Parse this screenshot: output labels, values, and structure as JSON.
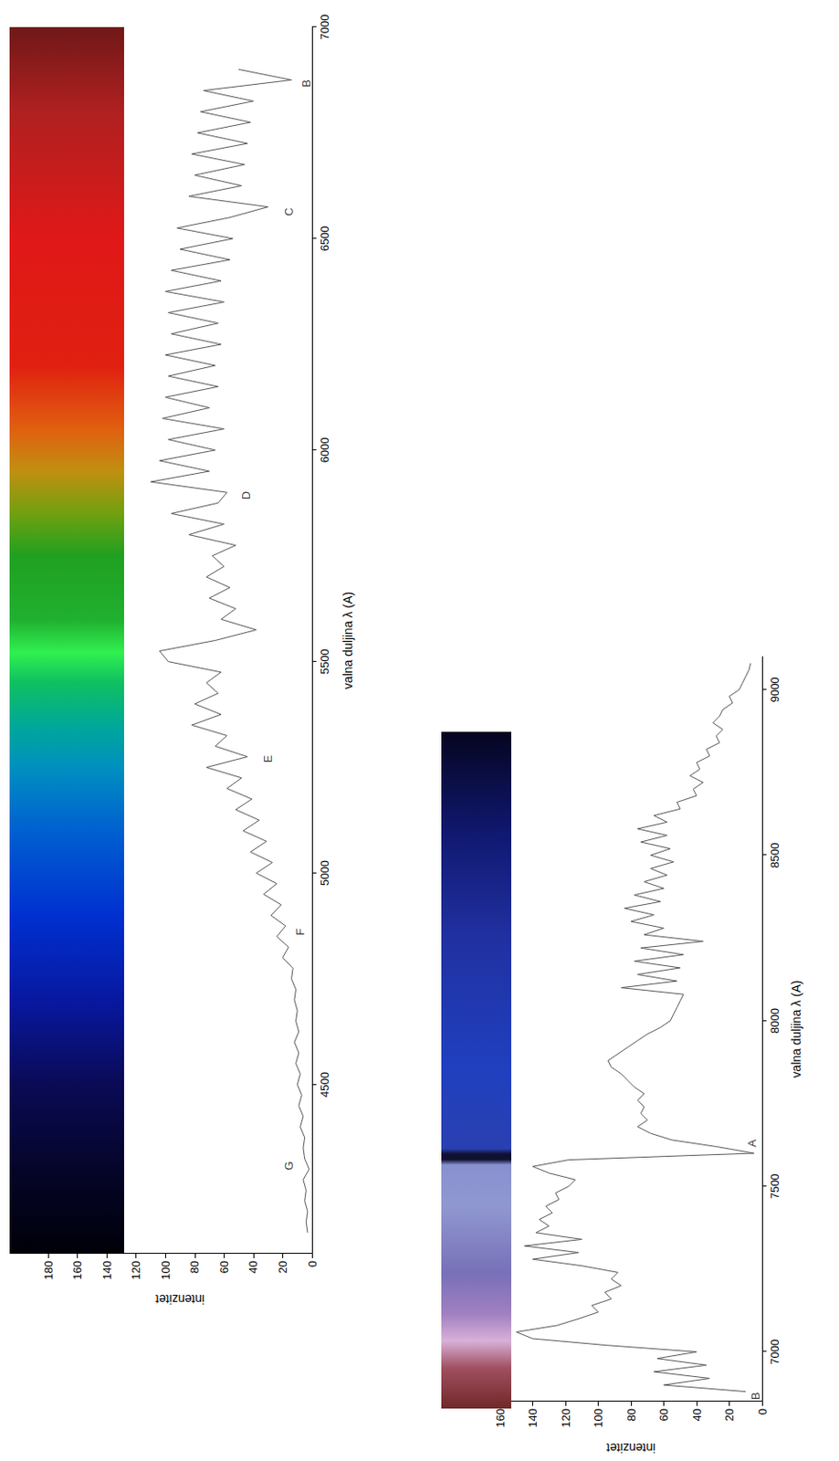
{
  "chart_data": [
    {
      "type": "line",
      "color": "#555555",
      "grid": false,
      "x_label": "valna duljina λ (A)",
      "y_label": "intenzitet",
      "xlim": [
        4100,
        7000
      ],
      "xticks": [
        4500,
        5000,
        5500,
        6000,
        6500,
        7000
      ],
      "ylim": [
        0,
        180
      ],
      "yticks": [
        0,
        20,
        40,
        60,
        80,
        100,
        120,
        140,
        160,
        180
      ],
      "x": [
        4150,
        4175,
        4200,
        4225,
        4250,
        4275,
        4300,
        4325,
        4350,
        4375,
        4400,
        4425,
        4450,
        4475,
        4500,
        4525,
        4550,
        4575,
        4600,
        4625,
        4650,
        4675,
        4700,
        4725,
        4750,
        4775,
        4800,
        4825,
        4850,
        4875,
        4900,
        4925,
        4950,
        4975,
        5000,
        5025,
        5050,
        5075,
        5100,
        5125,
        5150,
        5175,
        5200,
        5225,
        5250,
        5275,
        5300,
        5325,
        5350,
        5375,
        5400,
        5425,
        5450,
        5475,
        5500,
        5525,
        5550,
        5575,
        5600,
        5625,
        5650,
        5675,
        5700,
        5725,
        5750,
        5775,
        5800,
        5825,
        5850,
        5875,
        5900,
        5925,
        5950,
        5975,
        6000,
        6025,
        6050,
        6075,
        6100,
        6125,
        6150,
        6175,
        6200,
        6225,
        6250,
        6275,
        6300,
        6325,
        6350,
        6375,
        6400,
        6425,
        6450,
        6475,
        6500,
        6525,
        6550,
        6575,
        6600,
        6625,
        6650,
        6675,
        6700,
        6725,
        6750,
        6775,
        6800,
        6825,
        6850,
        6875,
        6900
      ],
      "values": [
        3,
        4,
        3,
        5,
        4,
        6,
        2,
        5,
        6,
        5,
        8,
        6,
        9,
        7,
        10,
        8,
        11,
        9,
        12,
        9,
        11,
        10,
        12,
        11,
        14,
        13,
        20,
        16,
        24,
        18,
        28,
        21,
        33,
        24,
        38,
        27,
        42,
        31,
        47,
        36,
        52,
        41,
        58,
        48,
        72,
        44,
        66,
        58,
        82,
        62,
        80,
        64,
        72,
        62,
        98,
        104,
        66,
        38,
        62,
        52,
        70,
        56,
        72,
        60,
        68,
        52,
        84,
        60,
        96,
        64,
        58,
        110,
        70,
        104,
        66,
        98,
        60,
        102,
        70,
        100,
        64,
        98,
        66,
        100,
        62,
        96,
        64,
        98,
        60,
        100,
        62,
        96,
        56,
        90,
        54,
        92,
        56,
        30,
        84,
        48,
        80,
        46,
        82,
        44,
        78,
        42,
        76,
        40,
        74,
        14,
        50
      ],
      "annotations": [
        {
          "text": "G",
          "x": 4308,
          "y": 16
        },
        {
          "text": "F",
          "x": 4861,
          "y": 8
        },
        {
          "text": "E",
          "x": 5270,
          "y": 30
        },
        {
          "text": "D",
          "x": 5893,
          "y": 45
        },
        {
          "text": "C",
          "x": 6563,
          "y": 16
        },
        {
          "text": "B",
          "x": 6867,
          "y": 4
        }
      ]
    },
    {
      "type": "line",
      "color": "#555555",
      "grid": false,
      "x_label": "valna duljina λ (A)",
      "y_label": "intenzitet",
      "xlim": [
        6850,
        9100
      ],
      "xticks": [
        7000,
        7500,
        8000,
        8500,
        9000
      ],
      "ylim": [
        0,
        160
      ],
      "yticks": [
        0,
        20,
        40,
        60,
        80,
        100,
        120,
        140,
        160
      ],
      "x": [
        6880,
        6900,
        6920,
        6940,
        6960,
        6980,
        7000,
        7020,
        7040,
        7060,
        7080,
        7100,
        7120,
        7140,
        7160,
        7180,
        7200,
        7220,
        7240,
        7260,
        7280,
        7300,
        7320,
        7340,
        7360,
        7380,
        7400,
        7420,
        7440,
        7460,
        7480,
        7500,
        7520,
        7540,
        7560,
        7580,
        7600,
        7620,
        7640,
        7660,
        7680,
        7700,
        7720,
        7740,
        7760,
        7780,
        7800,
        7820,
        7840,
        7860,
        7880,
        7900,
        7920,
        7940,
        7960,
        7980,
        8000,
        8020,
        8040,
        8060,
        8080,
        8100,
        8120,
        8140,
        8160,
        8180,
        8200,
        8220,
        8240,
        8260,
        8280,
        8300,
        8320,
        8340,
        8360,
        8380,
        8400,
        8420,
        8440,
        8460,
        8480,
        8500,
        8520,
        8540,
        8560,
        8580,
        8600,
        8620,
        8640,
        8660,
        8680,
        8700,
        8720,
        8740,
        8760,
        8780,
        8800,
        8820,
        8840,
        8860,
        8880,
        8900,
        8920,
        8940,
        8960,
        8980,
        9000,
        9020,
        9040,
        9060,
        9080
      ],
      "values": [
        10,
        60,
        32,
        66,
        34,
        64,
        40,
        95,
        140,
        150,
        125,
        112,
        100,
        104,
        92,
        96,
        86,
        92,
        88,
        110,
        140,
        112,
        145,
        110,
        138,
        130,
        136,
        128,
        132,
        124,
        126,
        118,
        114,
        130,
        140,
        118,
        5,
        28,
        55,
        68,
        76,
        70,
        74,
        72,
        76,
        72,
        78,
        82,
        86,
        92,
        94,
        88,
        82,
        76,
        70,
        62,
        56,
        54,
        52,
        50,
        48,
        86,
        52,
        76,
        50,
        78,
        48,
        74,
        36,
        72,
        60,
        80,
        66,
        84,
        62,
        78,
        60,
        72,
        58,
        68,
        54,
        68,
        56,
        74,
        58,
        76,
        58,
        66,
        50,
        52,
        40,
        42,
        36,
        44,
        38,
        40,
        32,
        34,
        26,
        28,
        24,
        30,
        26,
        24,
        18,
        20,
        14,
        12,
        10,
        8,
        7
      ],
      "annotations": [
        {
          "text": "B",
          "x": 6867,
          "y": 4
        },
        {
          "text": "A",
          "x": 7630,
          "y": 6
        }
      ]
    }
  ]
}
